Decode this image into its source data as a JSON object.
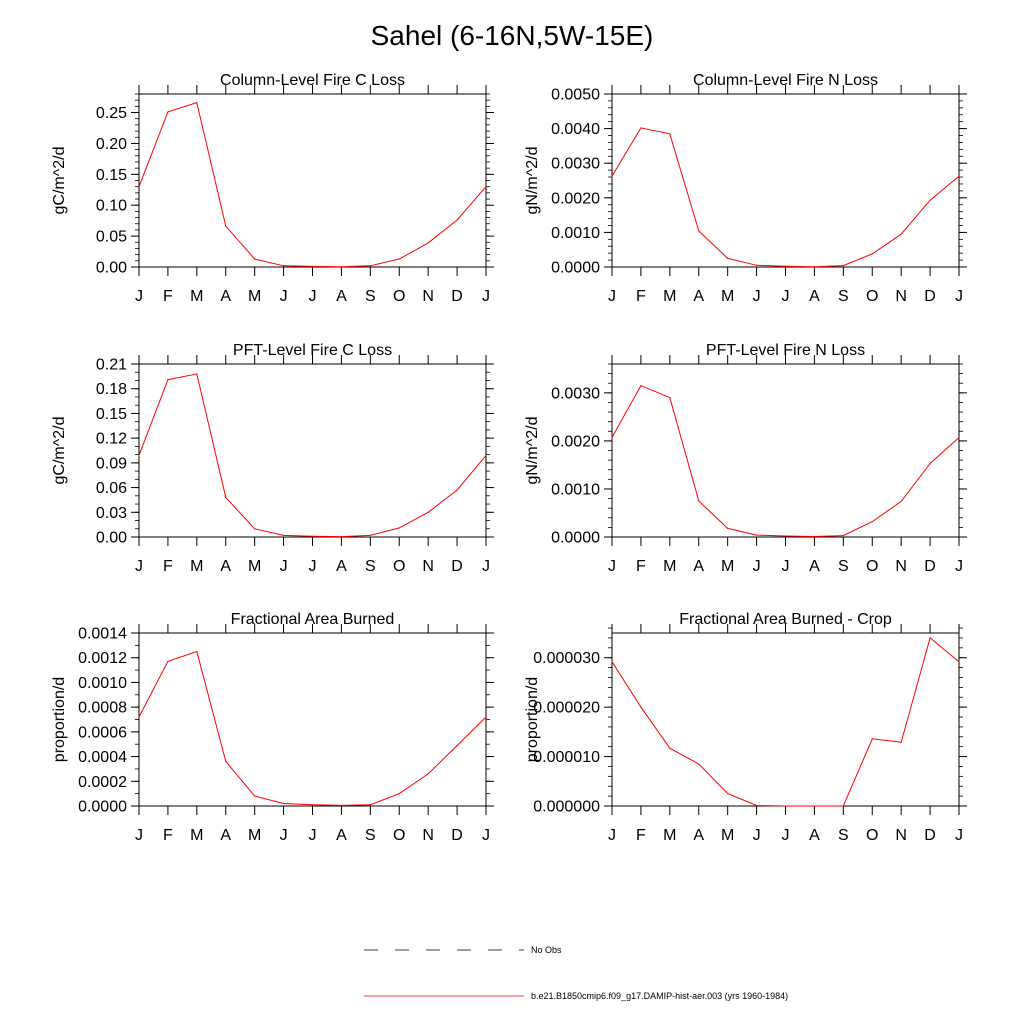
{
  "figure": {
    "title": "Sahel (6-16N,5W-15E)",
    "legend": [
      {
        "label": "No Obs",
        "color": "#000000",
        "dash": true
      },
      {
        "label": "b.e21.B1850cmip6.f09_g17.DAMIP-hist-aer.003 (yrs 1960-1984)",
        "color": "#ff0000",
        "dash": false
      }
    ]
  },
  "chart_data": [
    {
      "type": "line",
      "title": "Column-Level Fire C Loss",
      "ylabel": "gC/m^2/d",
      "categories": [
        "J",
        "F",
        "M",
        "A",
        "M",
        "J",
        "J",
        "A",
        "S",
        "O",
        "N",
        "D",
        "J"
      ],
      "ylim": [
        0,
        0.28
      ],
      "yticks": [
        0,
        0.05,
        0.1,
        0.15,
        0.2,
        0.25
      ],
      "ytick_labels": [
        "0.00",
        "0.05",
        "0.10",
        "0.15",
        "0.20",
        "0.25"
      ],
      "ytick_minor_step": 0.01,
      "series": [
        {
          "name": "b.e21.B1850cmip6.f09_g17.DAMIP-hist-aer.003 (yrs 1960-1984)",
          "color": "#ff0000",
          "values": [
            0.13,
            0.251,
            0.266,
            0.066,
            0.013,
            0.002,
            0.001,
            0.0005,
            0.002,
            0.013,
            0.039,
            0.076,
            0.13
          ]
        }
      ]
    },
    {
      "type": "line",
      "title": "Column-Level Fire N Loss",
      "ylabel": "gN/m^2/d",
      "categories": [
        "J",
        "F",
        "M",
        "A",
        "M",
        "J",
        "J",
        "A",
        "S",
        "O",
        "N",
        "D",
        "J"
      ],
      "ylim": [
        0,
        0.005
      ],
      "yticks": [
        0,
        0.001,
        0.002,
        0.003,
        0.004,
        0.005
      ],
      "ytick_labels": [
        "0.0000",
        "0.0010",
        "0.0020",
        "0.0030",
        "0.0040",
        "0.0050"
      ],
      "ytick_minor_step": 0.0002,
      "series": [
        {
          "name": "b.e21.B1850cmip6.f09_g17.DAMIP-hist-aer.003 (yrs 1960-1984)",
          "color": "#ff0000",
          "values": [
            0.00262,
            0.00402,
            0.00385,
            0.00104,
            0.00025,
            5e-05,
            2e-05,
            1e-05,
            4e-05,
            0.00038,
            0.00095,
            0.00193,
            0.00262
          ]
        }
      ]
    },
    {
      "type": "line",
      "title": "PFT-Level Fire C Loss",
      "ylabel": "gC/m^2/d",
      "categories": [
        "J",
        "F",
        "M",
        "A",
        "M",
        "J",
        "J",
        "A",
        "S",
        "O",
        "N",
        "D",
        "J"
      ],
      "ylim": [
        0,
        0.21
      ],
      "yticks": [
        0,
        0.03,
        0.06,
        0.09,
        0.12,
        0.15,
        0.18,
        0.21
      ],
      "ytick_labels": [
        "0.00",
        "0.03",
        "0.06",
        "0.09",
        "0.12",
        "0.15",
        "0.18",
        "0.21"
      ],
      "ytick_minor_step": 0.01,
      "series": [
        {
          "name": "b.e21.B1850cmip6.f09_g17.DAMIP-hist-aer.003 (yrs 1960-1984)",
          "color": "#ff0000",
          "values": [
            0.099,
            0.191,
            0.198,
            0.048,
            0.01,
            0.002,
            0.001,
            0.0005,
            0.002,
            0.011,
            0.03,
            0.057,
            0.099
          ]
        }
      ]
    },
    {
      "type": "line",
      "title": "PFT-Level Fire N Loss",
      "ylabel": "gN/m^2/d",
      "categories": [
        "J",
        "F",
        "M",
        "A",
        "M",
        "J",
        "J",
        "A",
        "S",
        "O",
        "N",
        "D",
        "J"
      ],
      "ylim": [
        0,
        0.0036
      ],
      "yticks": [
        0,
        0.001,
        0.002,
        0.003
      ],
      "ytick_labels": [
        "0.0000",
        "0.0010",
        "0.0020",
        "0.0030"
      ],
      "ytick_minor_step": 0.0002,
      "series": [
        {
          "name": "b.e21.B1850cmip6.f09_g17.DAMIP-hist-aer.003 (yrs 1960-1984)",
          "color": "#ff0000",
          "values": [
            0.00207,
            0.00315,
            0.0029,
            0.00075,
            0.00018,
            4e-05,
            2e-05,
            1e-05,
            3e-05,
            0.00032,
            0.00074,
            0.00153,
            0.00207
          ]
        }
      ]
    },
    {
      "type": "line",
      "title": "Fractional Area Burned",
      "ylabel": "proportion/d",
      "categories": [
        "J",
        "F",
        "M",
        "A",
        "M",
        "J",
        "J",
        "A",
        "S",
        "O",
        "N",
        "D",
        "J"
      ],
      "ylim": [
        0,
        0.0014
      ],
      "yticks": [
        0,
        0.0002,
        0.0004,
        0.0006,
        0.0008,
        0.001,
        0.0012,
        0.0014
      ],
      "ytick_labels": [
        "0.0000",
        "0.0002",
        "0.0004",
        "0.0006",
        "0.0008",
        "0.0010",
        "0.0012",
        "0.0014"
      ],
      "ytick_minor_step": 0.0001,
      "series": [
        {
          "name": "b.e21.B1850cmip6.f09_g17.DAMIP-hist-aer.003 (yrs 1960-1984)",
          "color": "#ff0000",
          "values": [
            0.00072,
            0.00117,
            0.00125,
            0.00036,
            8e-05,
            2e-05,
            1e-05,
            5e-06,
            1e-05,
            0.0001,
            0.00026,
            0.00049,
            0.00072
          ]
        }
      ]
    },
    {
      "type": "line",
      "title": "Fractional Area Burned - Crop",
      "ylabel": "proportion/d",
      "categories": [
        "J",
        "F",
        "M",
        "A",
        "M",
        "J",
        "J",
        "A",
        "S",
        "O",
        "N",
        "D",
        "J"
      ],
      "ylim": [
        0,
        3.5e-05
      ],
      "yticks": [
        0,
        1e-05,
        2e-05,
        3e-05
      ],
      "ytick_labels": [
        "0.000000",
        "0.000010",
        "0.000020",
        "0.000030"
      ],
      "ytick_minor_step": 2e-06,
      "series": [
        {
          "name": "b.e21.B1850cmip6.f09_g17.DAMIP-hist-aer.003 (yrs 1960-1984)",
          "color": "#ff0000",
          "values": [
            2.92e-05,
            2e-05,
            1.17e-05,
            8.5e-06,
            2.5e-06,
            1e-07,
            0.0,
            0.0,
            0.0,
            1.36e-05,
            1.29e-05,
            3.4e-05,
            2.92e-05
          ]
        }
      ]
    }
  ]
}
